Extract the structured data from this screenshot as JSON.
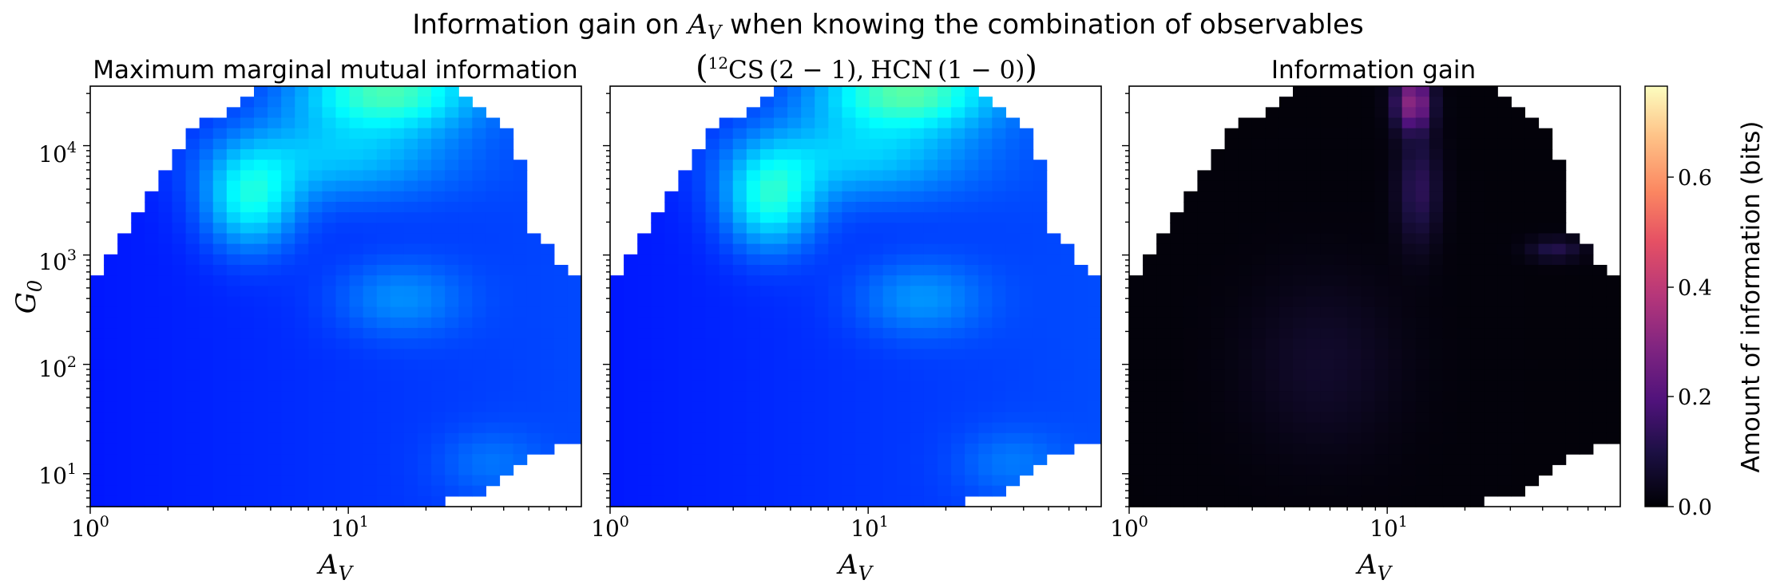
{
  "figure": {
    "suptitle": "Information gain on A_V when knowing the combination of observables",
    "suptitle_text": "Information gain on ",
    "suptitle_math": "A",
    "suptitle_math_sub": "V",
    "suptitle_rest": " when knowing the combination of observables"
  },
  "panels": [
    {
      "title": "Maximum marginal mutual information"
    },
    {
      "title_parts": {
        "paren_open": "(",
        "sup": "12",
        "cs": "CS",
        "cs_trans": "(2 − 1),",
        "hcn": "HCN",
        "hcn_trans": "(1 − 0)",
        "paren_close": ")"
      }
    },
    {
      "title": "Information gain"
    }
  ],
  "axes": {
    "xlabel_main": "A",
    "xlabel_sub": "V",
    "ylabel_main": "G",
    "ylabel_sub": "0",
    "x_ticks": [
      {
        "base": "10",
        "exp": "0"
      },
      {
        "base": "10",
        "exp": "1"
      }
    ],
    "y_ticks": [
      {
        "base": "10",
        "exp": "1"
      },
      {
        "base": "10",
        "exp": "2"
      },
      {
        "base": "10",
        "exp": "3"
      },
      {
        "base": "10",
        "exp": "4"
      }
    ]
  },
  "colorbar": {
    "label": "Amount of information (bits)",
    "ticks": [
      "0.0",
      "0.2",
      "0.4",
      "0.6"
    ]
  },
  "chart_data": [
    {
      "type": "heatmap",
      "title": "Maximum marginal mutual information",
      "xlabel": "A_V",
      "ylabel": "G_0",
      "x_scale": "log",
      "y_scale": "log",
      "xlim": [
        1,
        80
      ],
      "ylim": [
        5,
        35000
      ],
      "colormap": "jet",
      "note": "values approx. 0.02–0.4 bits; high values at top (G0 > 5000, Av 6–30)"
    },
    {
      "type": "heatmap",
      "title": "(12CS (2−1), HCN (1−0))",
      "xlabel": "A_V",
      "x_scale": "log",
      "y_scale": "log",
      "xlim": [
        1,
        80
      ],
      "ylim": [
        5,
        35000
      ],
      "colormap": "jet"
    },
    {
      "type": "heatmap",
      "title": "Information gain",
      "xlabel": "A_V",
      "x_scale": "log",
      "y_scale": "log",
      "xlim": [
        1,
        80
      ],
      "ylim": [
        5,
        35000
      ],
      "colormap": "magma",
      "clim": [
        0.0,
        0.76
      ],
      "colorbar_label": "Amount of information (bits)"
    }
  ]
}
